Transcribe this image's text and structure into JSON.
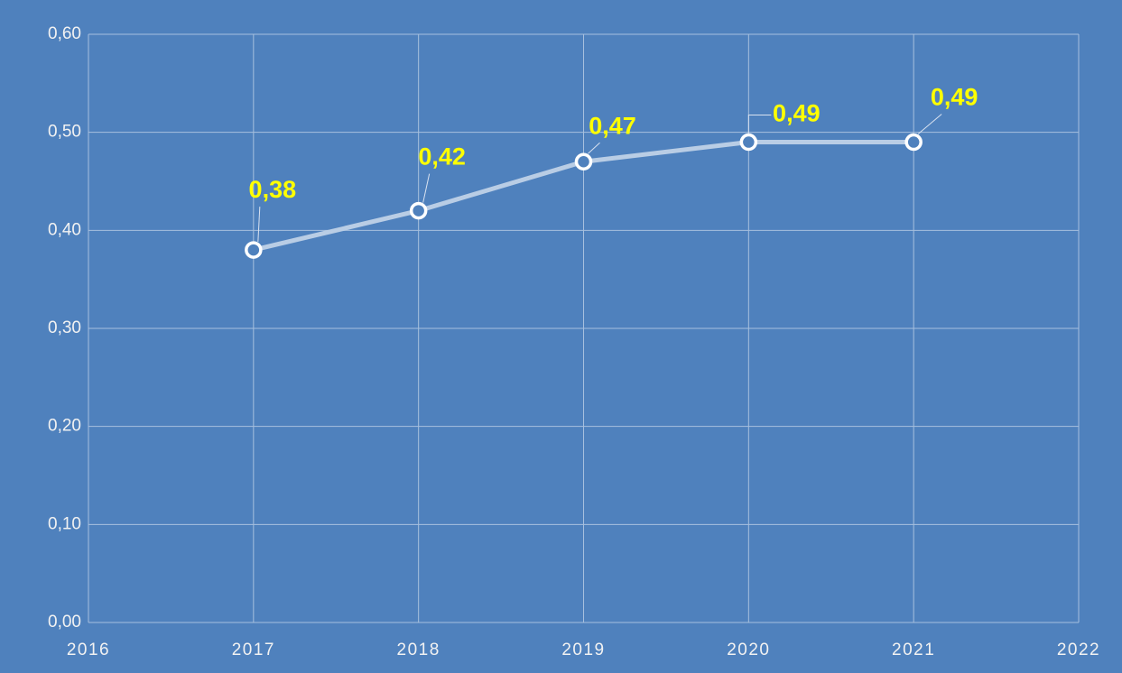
{
  "chart_data": {
    "type": "line",
    "x": [
      2017,
      2018,
      2019,
      2020,
      2021
    ],
    "series": [
      {
        "values": [
          0.38,
          0.42,
          0.47,
          0.49,
          0.49
        ],
        "value_labels": [
          "0,38",
          "0,42",
          "0,47",
          "0,49",
          "0,49"
        ],
        "color": "#b9cde5"
      }
    ],
    "xlim": [
      2016,
      2022
    ],
    "xticks": [
      2016,
      2017,
      2018,
      2019,
      2020,
      2021,
      2022
    ],
    "ylim": [
      0,
      0.6
    ],
    "yticks": [
      {
        "value": 0,
        "label": "0,00"
      },
      {
        "value": 0.1,
        "label": "0,10"
      },
      {
        "value": 0.2,
        "label": "0,20"
      },
      {
        "value": 0.3,
        "label": "0,30"
      },
      {
        "value": 0.4,
        "label": "0,40"
      },
      {
        "value": 0.5,
        "label": "0,50"
      },
      {
        "value": 0.6,
        "label": "0,60"
      }
    ],
    "grid": true
  }
}
